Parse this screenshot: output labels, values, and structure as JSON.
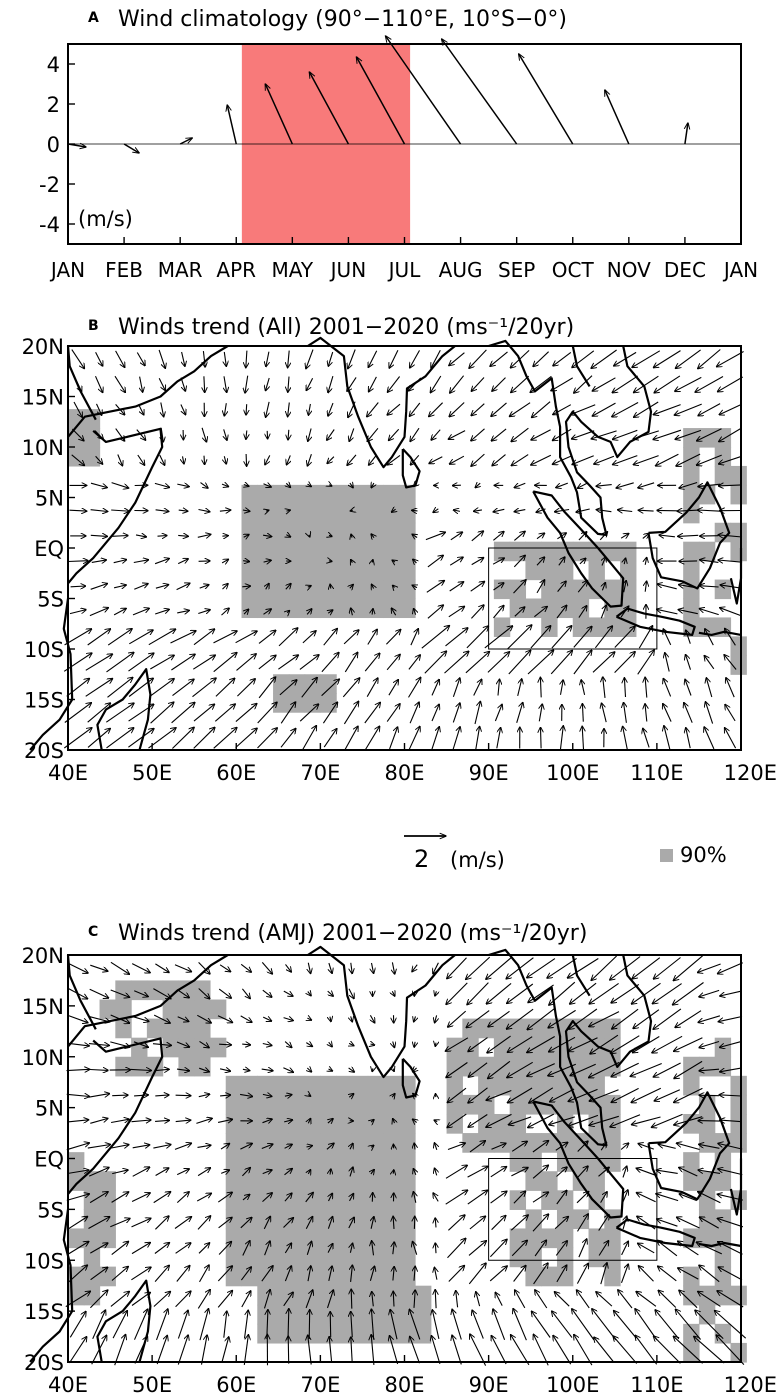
{
  "colors": {
    "highlight": "#f87a7a",
    "significance": "#aaaaaa",
    "ink": "#000000"
  },
  "chart_data": [
    {
      "panel": "A",
      "type": "vector",
      "title": "Wind climatology (90°−110°E, 10°S−0°)",
      "unit_label": "(m/s)",
      "ylim": [
        -5,
        5
      ],
      "yticks": [
        4,
        2,
        0,
        -2,
        -4
      ],
      "xticks": [
        "JAN",
        "FEB",
        "MAR",
        "APR",
        "MAY",
        "JUN",
        "JUL",
        "AUG",
        "SEP",
        "OCT",
        "NOV",
        "DEC",
        "JAN"
      ],
      "highlight_months": [
        "APR",
        "MAY",
        "JUN"
      ],
      "vectors": [
        {
          "month": "JAN",
          "u": 0.6,
          "v": -0.1
        },
        {
          "month": "FEB",
          "u": 0.5,
          "v": -0.3
        },
        {
          "month": "MAR",
          "u": 0.4,
          "v": 0.2
        },
        {
          "month": "APR",
          "u": -0.3,
          "v": 1.3
        },
        {
          "month": "MAY",
          "u": -0.9,
          "v": 2.0
        },
        {
          "month": "JUN",
          "u": -1.3,
          "v": 2.4
        },
        {
          "month": "JUL",
          "u": -1.6,
          "v": 2.9
        },
        {
          "month": "AUG",
          "u": -2.5,
          "v": 3.6
        },
        {
          "month": "SEP",
          "u": -2.5,
          "v": 3.5
        },
        {
          "month": "OCT",
          "u": -1.8,
          "v": 3.0
        },
        {
          "month": "NOV",
          "u": -0.8,
          "v": 1.8
        },
        {
          "month": "DEC",
          "u": 0.1,
          "v": 0.7
        }
      ]
    },
    {
      "panel": "B",
      "type": "vector-map",
      "title": "Winds trend (All) 2001−2020 (ms⁻¹/20yr)",
      "xlim": [
        40,
        120
      ],
      "ylim": [
        -20,
        20
      ],
      "xticks": [
        "40E",
        "50E",
        "60E",
        "70E",
        "80E",
        "90E",
        "100E",
        "110E",
        "120E"
      ],
      "yticks": [
        "20N",
        "15N",
        "10N",
        "5N",
        "EQ",
        "5S",
        "10S",
        "15S",
        "20S"
      ],
      "box": {
        "lon": [
          90,
          110
        ],
        "lat": [
          -10,
          0
        ]
      }
    },
    {
      "panel": "C",
      "type": "vector-map",
      "title": "Winds trend (AMJ) 2001−2020 (ms⁻¹/20yr)",
      "xlim": [
        40,
        120
      ],
      "ylim": [
        -20,
        20
      ],
      "xticks": [
        "40E",
        "50E",
        "60E",
        "70E",
        "80E",
        "90E",
        "100E",
        "110E",
        "120E"
      ],
      "yticks": [
        "20N",
        "15N",
        "10N",
        "5N",
        "EQ",
        "5S",
        "10S",
        "15S",
        "20S"
      ],
      "box": {
        "lon": [
          90,
          110
        ],
        "lat": [
          -10,
          0
        ]
      }
    }
  ],
  "legend": {
    "ref_vector_value": "2",
    "ref_vector_unit": "(m/s)",
    "sig_label": "90%"
  }
}
